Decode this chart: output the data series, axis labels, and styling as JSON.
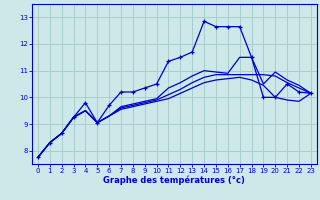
{
  "xlabel": "Graphe des températures (°c)",
  "xlim": [
    -0.5,
    23.5
  ],
  "ylim": [
    7.5,
    13.5
  ],
  "yticks": [
    8,
    9,
    10,
    11,
    12,
    13
  ],
  "xticks": [
    0,
    1,
    2,
    3,
    4,
    5,
    6,
    7,
    8,
    9,
    10,
    11,
    12,
    13,
    14,
    15,
    16,
    17,
    18,
    19,
    20,
    21,
    22,
    23
  ],
  "background_color": "#cce8e8",
  "grid_color": "#aacccc",
  "line_color": "#0000cc",
  "lines": [
    {
      "x": [
        0,
        1,
        2,
        3,
        4,
        5,
        6,
        7,
        8,
        9,
        10,
        11,
        12,
        13,
        14,
        15,
        16,
        17,
        18,
        19,
        20,
        21,
        22,
        23
      ],
      "y": [
        7.75,
        8.3,
        8.65,
        9.25,
        9.8,
        9.05,
        9.7,
        10.2,
        10.2,
        10.35,
        10.5,
        11.35,
        11.5,
        11.7,
        12.85,
        12.65,
        12.65,
        12.65,
        11.5,
        10.0,
        10.0,
        10.5,
        10.2,
        10.15
      ],
      "marker": "+"
    },
    {
      "x": [
        0,
        1,
        2,
        3,
        4,
        5,
        6,
        7,
        8,
        9,
        10,
        11,
        12,
        13,
        14,
        15,
        16,
        17,
        18,
        19,
        20,
        21,
        22,
        23
      ],
      "y": [
        7.75,
        8.3,
        8.65,
        9.25,
        9.5,
        9.05,
        9.3,
        9.65,
        9.75,
        9.85,
        9.95,
        10.35,
        10.55,
        10.8,
        11.0,
        10.95,
        10.9,
        11.5,
        11.5,
        10.5,
        10.95,
        10.65,
        10.45,
        10.15
      ],
      "marker": null
    },
    {
      "x": [
        0,
        1,
        2,
        3,
        4,
        5,
        6,
        7,
        8,
        9,
        10,
        11,
        12,
        13,
        14,
        15,
        16,
        17,
        18,
        19,
        20,
        21,
        22,
        23
      ],
      "y": [
        7.75,
        8.3,
        8.65,
        9.25,
        9.5,
        9.05,
        9.3,
        9.6,
        9.7,
        9.8,
        9.9,
        10.1,
        10.3,
        10.55,
        10.75,
        10.85,
        10.85,
        10.85,
        10.85,
        10.85,
        10.8,
        10.55,
        10.35,
        10.15
      ],
      "marker": null
    },
    {
      "x": [
        0,
        1,
        2,
        3,
        4,
        5,
        6,
        7,
        8,
        9,
        10,
        11,
        12,
        13,
        14,
        15,
        16,
        17,
        18,
        19,
        20,
        21,
        22,
        23
      ],
      "y": [
        7.75,
        8.3,
        8.65,
        9.25,
        9.5,
        9.05,
        9.3,
        9.55,
        9.65,
        9.75,
        9.85,
        9.95,
        10.15,
        10.35,
        10.55,
        10.65,
        10.7,
        10.75,
        10.65,
        10.45,
        10.0,
        9.9,
        9.85,
        10.15
      ],
      "marker": null
    }
  ]
}
